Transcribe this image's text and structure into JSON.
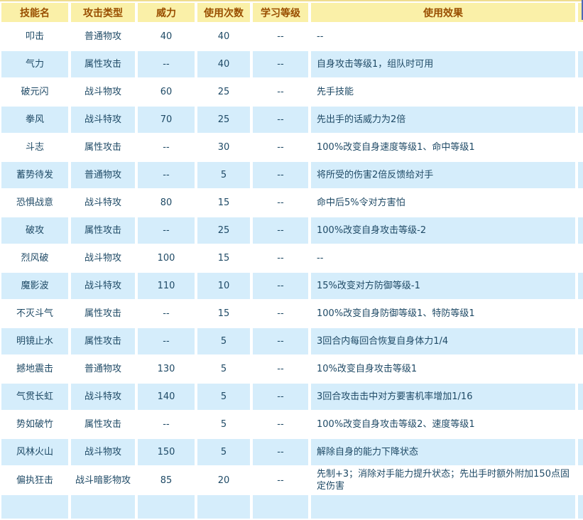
{
  "colors": {
    "header_bg": "#FAF0A8",
    "header_text": "#994E00",
    "row_bg": "#FFFFFF",
    "row_alt_bg": "#D5EDFB",
    "cell_text": "#1F4A66",
    "top_line": "#EFDC8F",
    "right_edge_line": "#4E68B5"
  },
  "table": {
    "headers": [
      "技能名",
      "攻击类型",
      "威力",
      "使用次数",
      "学习等级",
      "使用效果"
    ],
    "rows": [
      {
        "skill": "叩击",
        "type": "普通物攻",
        "power": "40",
        "pp": "40",
        "level": "--",
        "effect": "--"
      },
      {
        "skill": "气力",
        "type": "属性攻击",
        "power": "--",
        "pp": "40",
        "level": "--",
        "effect": "自身攻击等级1，组队时可用"
      },
      {
        "skill": "破元闪",
        "type": "战斗物攻",
        "power": "60",
        "pp": "25",
        "level": "--",
        "effect": "先手技能"
      },
      {
        "skill": "拳风",
        "type": "战斗特攻",
        "power": "70",
        "pp": "25",
        "level": "--",
        "effect": "先出手的话威力为2倍"
      },
      {
        "skill": "斗志",
        "type": "属性攻击",
        "power": "--",
        "pp": "30",
        "level": "--",
        "effect": "100%改变自身速度等级1、命中等级1"
      },
      {
        "skill": "蓄势待发",
        "type": "普通物攻",
        "power": "--",
        "pp": "5",
        "level": "--",
        "effect": "将所受的伤害2倍反馈给对手"
      },
      {
        "skill": "恐惧战意",
        "type": "战斗特攻",
        "power": "80",
        "pp": "15",
        "level": "--",
        "effect": "命中后5%令对方害怕"
      },
      {
        "skill": "破攻",
        "type": "属性攻击",
        "power": "--",
        "pp": "25",
        "level": "--",
        "effect": "100%改变自身攻击等级-2"
      },
      {
        "skill": "烈风破",
        "type": "战斗物攻",
        "power": "100",
        "pp": "15",
        "level": "--",
        "effect": "--"
      },
      {
        "skill": "魔影波",
        "type": "战斗特攻",
        "power": "110",
        "pp": "10",
        "level": "--",
        "effect": "15%改变对方防御等级-1"
      },
      {
        "skill": "不灭斗气",
        "type": "属性攻击",
        "power": "--",
        "pp": "15",
        "level": "--",
        "effect": "100%改变自身防御等级1、特防等级1"
      },
      {
        "skill": "明镜止水",
        "type": "属性攻击",
        "power": "--",
        "pp": "5",
        "level": "--",
        "effect": "3回合内每回合恢复自身体力1/4"
      },
      {
        "skill": "撼地震击",
        "type": "普通物攻",
        "power": "130",
        "pp": "5",
        "level": "--",
        "effect": "10%改变自身攻击等级1"
      },
      {
        "skill": "气贯长虹",
        "type": "战斗特攻",
        "power": "140",
        "pp": "5",
        "level": "--",
        "effect": "3回合攻击击中对方要害机率增加1/16"
      },
      {
        "skill": "势如破竹",
        "type": "属性攻击",
        "power": "--",
        "pp": "5",
        "level": "--",
        "effect": "100%改变自身攻击等级2、速度等级1"
      },
      {
        "skill": "风林火山",
        "type": "战斗物攻",
        "power": "150",
        "pp": "5",
        "level": "--",
        "effect": "解除自身的能力下降状态"
      },
      {
        "skill": "偏执狂击",
        "type": "战斗暗影物攻",
        "power": "85",
        "pp": "20",
        "level": "--",
        "effect": "先制+3；消除对手能力提升状态；先出手时额外附加150点固定伤害"
      }
    ],
    "partial_bottom_row_visible": true
  }
}
